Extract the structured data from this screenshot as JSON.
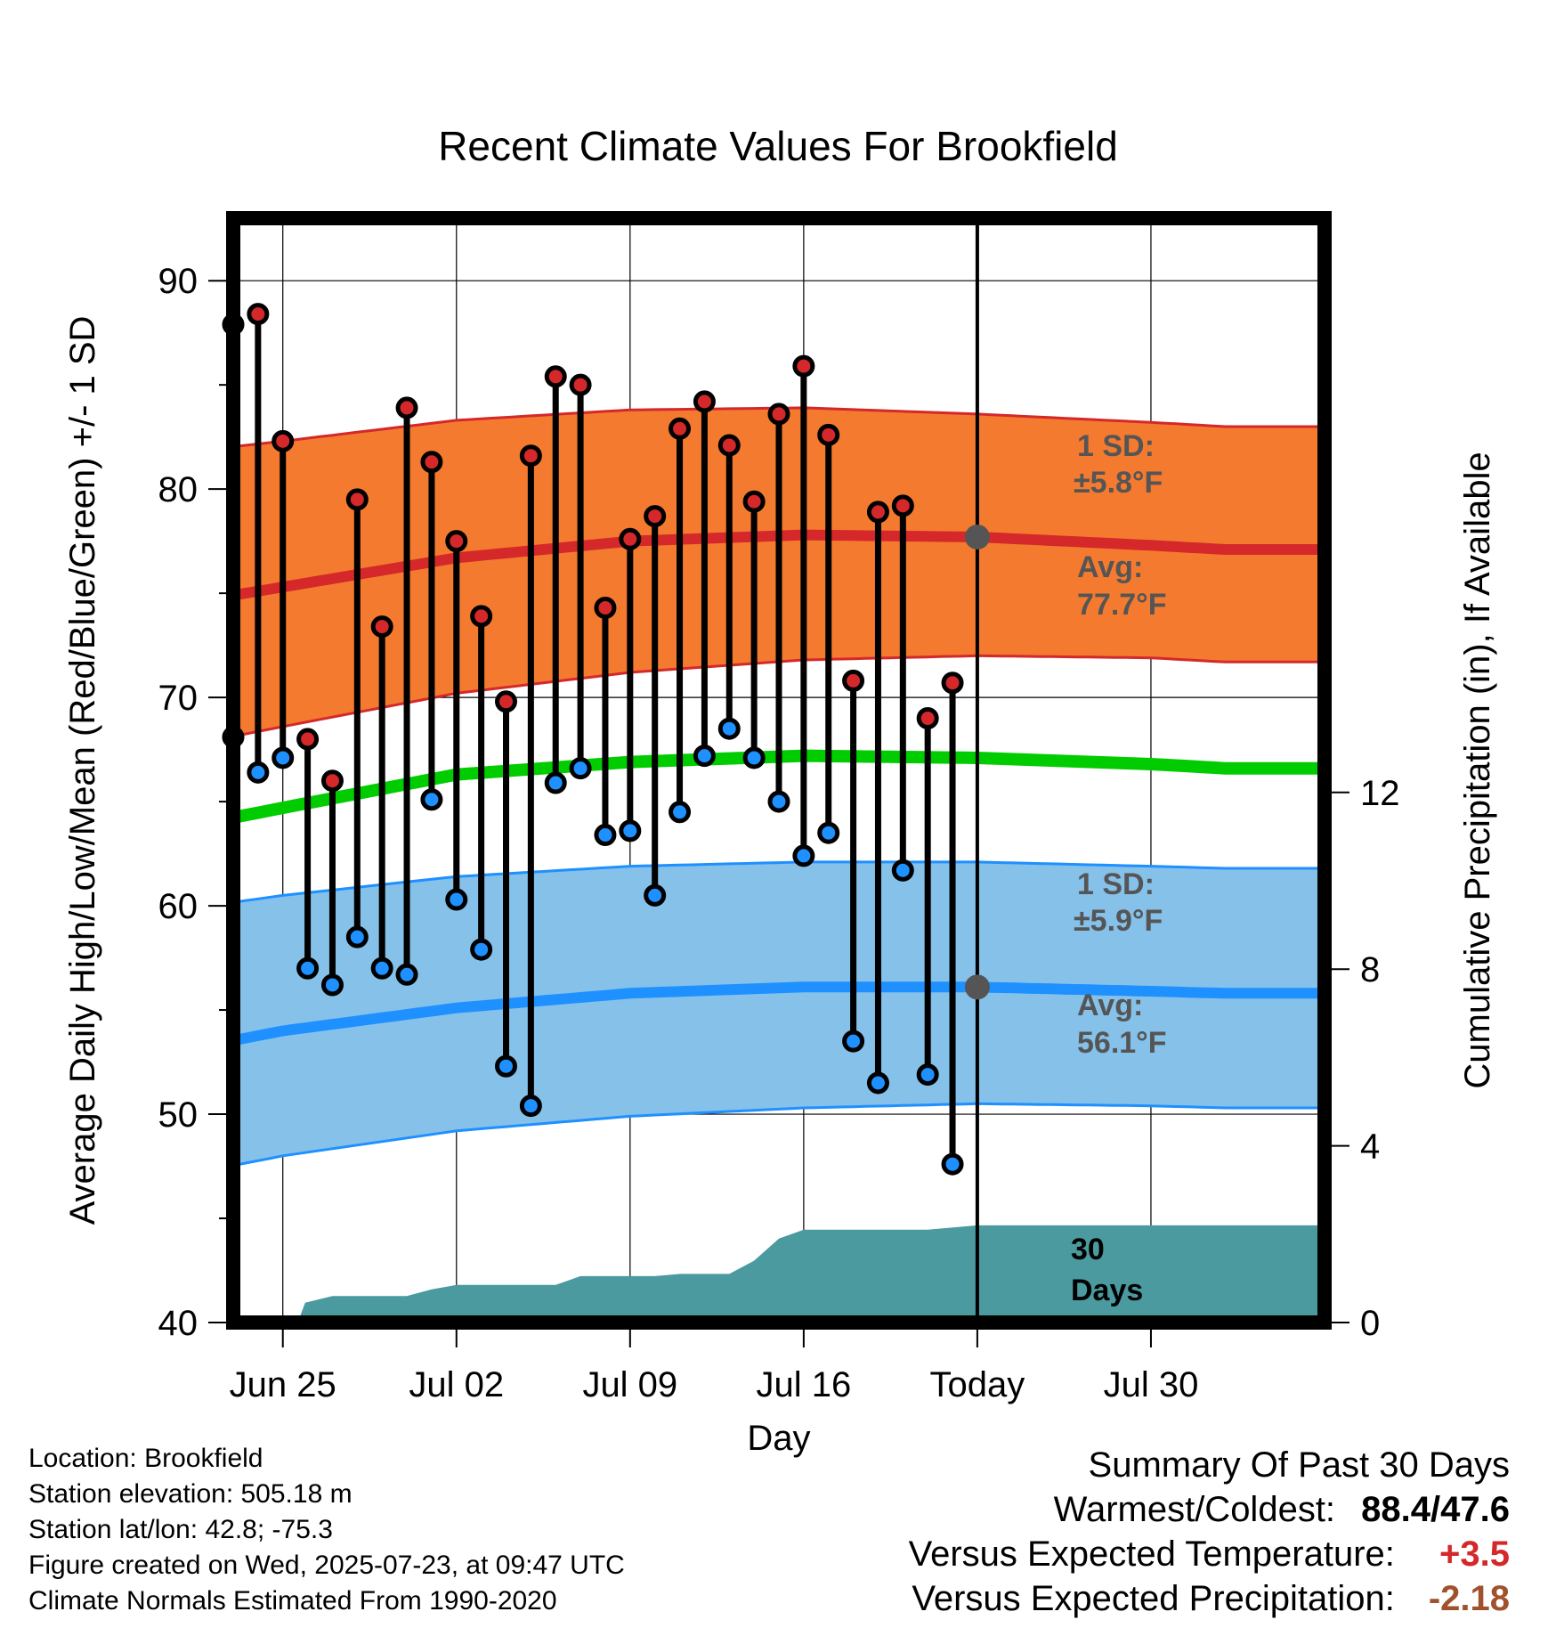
{
  "chart_data": {
    "type": "line",
    "title": "Recent Climate Values For Brookfield",
    "xlabel": "Day",
    "ylabel": "Average Daily High/Low/Mean (Red/Blue/Green) +/- 1 SD",
    "y2label": "Cumulative Precipitation (in), If Available",
    "ylim": [
      40,
      93
    ],
    "y2lim": [
      0,
      25
    ],
    "x_day_range": [
      -30,
      14
    ],
    "x_tick_days": [
      -28,
      -21,
      -14,
      -7,
      0,
      7
    ],
    "x_tick_labels": [
      "Jun 25",
      "Jul 02",
      "Jul 09",
      "Jul 16",
      "Today",
      "Jul 30"
    ],
    "y_ticks": [
      40,
      50,
      60,
      70,
      80,
      90
    ],
    "y2_ticks": [
      0,
      4,
      8,
      12
    ],
    "grid": true,
    "high_temps": [
      87.9,
      88.4,
      82.3,
      68.0,
      66.0,
      79.5,
      73.4,
      83.9,
      81.3,
      77.5,
      73.9,
      69.8,
      81.6,
      85.4,
      85.0,
      74.3,
      77.6,
      78.7,
      82.9,
      84.2,
      82.1,
      79.4,
      83.6,
      85.9,
      82.6,
      70.8,
      78.9,
      79.2,
      69.0,
      70.7
    ],
    "low_temps": [
      68.1,
      66.4,
      67.1,
      57.0,
      56.2,
      58.5,
      57.0,
      56.7,
      65.1,
      60.3,
      57.9,
      52.3,
      50.4,
      65.9,
      66.6,
      63.4,
      63.6,
      60.5,
      64.5,
      67.2,
      68.5,
      67.1,
      65.0,
      62.4,
      63.5,
      53.5,
      51.5,
      61.7,
      51.9,
      47.6
    ],
    "normal_high": {
      "days": [
        -31,
        -28,
        -21,
        -14,
        -7,
        0,
        7,
        10
      ],
      "avg": [
        74.7,
        75.3,
        76.7,
        77.5,
        77.8,
        77.7,
        77.3,
        77.1
      ],
      "upper": [
        81.9,
        82.3,
        83.3,
        83.8,
        83.9,
        83.6,
        83.2,
        83.0
      ],
      "lower": [
        67.9,
        68.6,
        70.2,
        71.2,
        71.8,
        72.0,
        71.9,
        71.7
      ]
    },
    "normal_mean": {
      "days": [
        -31,
        -28,
        -21,
        -14,
        -7,
        0,
        7,
        10
      ],
      "avg": [
        64.0,
        64.7,
        66.3,
        66.9,
        67.2,
        67.1,
        66.8,
        66.6
      ]
    },
    "normal_low": {
      "days": [
        -31,
        -28,
        -21,
        -14,
        -7,
        0,
        7,
        10
      ],
      "avg": [
        53.3,
        54.0,
        55.1,
        55.8,
        56.1,
        56.1,
        55.9,
        55.8
      ],
      "upper": [
        60.0,
        60.5,
        61.4,
        61.9,
        62.1,
        62.1,
        61.9,
        61.8
      ],
      "lower": [
        47.3,
        48.0,
        49.2,
        49.9,
        50.3,
        50.5,
        50.4,
        50.3
      ]
    },
    "precip": {
      "days": [
        -30,
        -27.4,
        -27.1,
        -26,
        -25,
        -23,
        -22,
        -21,
        -20,
        -17,
        -16,
        -13,
        -12,
        -10,
        -9,
        -8,
        -7,
        -5,
        -4,
        -2,
        0,
        14
      ],
      "values": [
        0.0,
        0.0,
        0.45,
        0.6,
        0.6,
        0.6,
        0.75,
        0.85,
        0.85,
        0.85,
        1.05,
        1.05,
        1.1,
        1.1,
        1.4,
        1.9,
        2.1,
        2.1,
        2.1,
        2.1,
        2.2,
        2.2
      ]
    },
    "annotations": {
      "high_sd": "1 SD:",
      "high_sd_value": "±5.8°F",
      "high_avg": "Avg:",
      "high_avg_value": "77.7°F",
      "low_sd": "1 SD:",
      "low_sd_value": "±5.9°F",
      "low_avg": "Avg:",
      "low_avg_value": "56.1°F",
      "days_line1": "30",
      "days_line2": "Days"
    },
    "colors": {
      "high_band": "#f47a2f",
      "high_line": "#d4282a",
      "low_band": "#85c1e9",
      "low_line": "#1e90ff",
      "mean_line": "#00cc00",
      "precip": "#4a9aa0",
      "high_dot": "#d4282a",
      "low_dot": "#1e90ff",
      "today_marker": "#555555"
    }
  },
  "footer": {
    "location": "Location: Brookfield",
    "elevation": "Station elevation: 505.18 m",
    "latlon": "Station lat/lon: 42.8; -75.3",
    "created": "Figure created on Wed, 2025-07-23, at 09:47 UTC",
    "normals": "Climate Normals Estimated From 1990-2020"
  },
  "summary": {
    "title": "Summary Of Past 30 Days",
    "warmest_label": "Warmest/Coldest:",
    "warmest_value": "88.4/47.6",
    "temp_label": "Versus Expected Temperature:",
    "temp_value": "+3.5",
    "precip_label": "Versus Expected Precipitation:",
    "precip_value": "-2.18"
  }
}
